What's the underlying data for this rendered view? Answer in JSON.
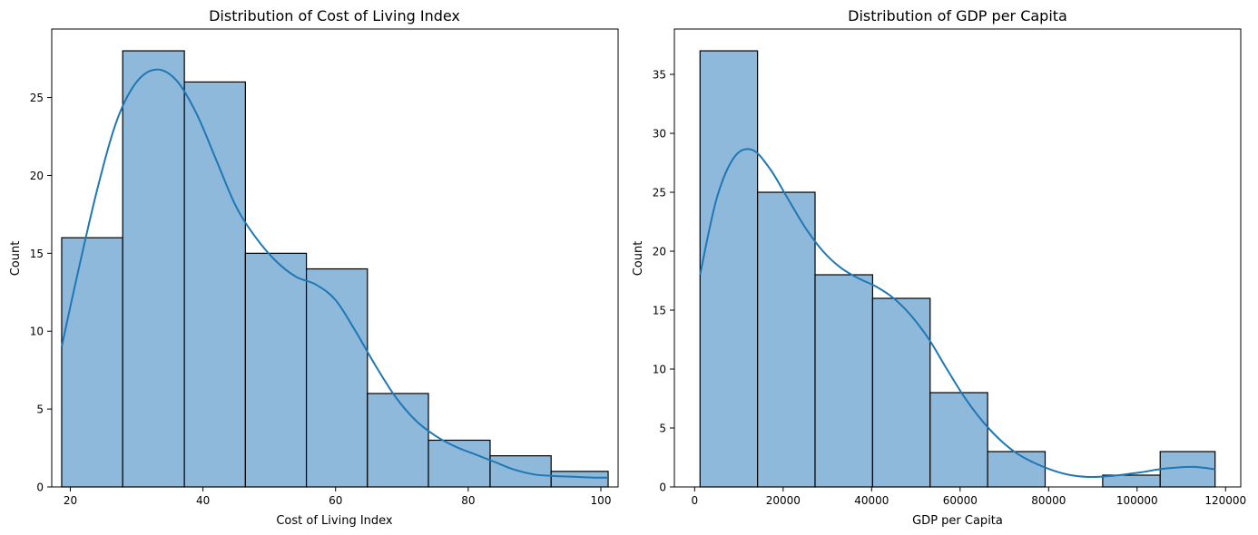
{
  "chart_data": [
    {
      "type": "bar",
      "title": "Distribution of Cost of Living Index",
      "xlabel": "Cost of Living Index",
      "ylabel": "Count",
      "xlim": [
        17.2,
        102.6
      ],
      "ylim": [
        0,
        29.4
      ],
      "xticks": [
        20,
        40,
        60,
        80,
        100
      ],
      "yticks": [
        0,
        5,
        10,
        15,
        20,
        25
      ],
      "bins": [
        {
          "x0": 18.7,
          "x1": 27.9,
          "count": 16
        },
        {
          "x0": 27.9,
          "x1": 37.2,
          "count": 28
        },
        {
          "x0": 37.2,
          "x1": 46.4,
          "count": 26
        },
        {
          "x0": 46.4,
          "x1": 55.6,
          "count": 15
        },
        {
          "x0": 55.6,
          "x1": 64.8,
          "count": 14
        },
        {
          "x0": 64.8,
          "x1": 74.0,
          "count": 6
        },
        {
          "x0": 74.0,
          "x1": 83.3,
          "count": 3
        },
        {
          "x0": 83.3,
          "x1": 92.5,
          "count": 2
        },
        {
          "x0": 92.5,
          "x1": 101.1,
          "count": 1
        }
      ],
      "kde": {
        "x": [
          18.7,
          21,
          24,
          27,
          30,
          33,
          36,
          39,
          42,
          45,
          48,
          51,
          54,
          57,
          60,
          63,
          66,
          69,
          72,
          75,
          78,
          81,
          84,
          87,
          90,
          93,
          96,
          99,
          101.1
        ],
        "y": [
          9.0,
          13.5,
          19.0,
          23.5,
          26.0,
          26.8,
          26.1,
          24.0,
          21.0,
          18.0,
          16.0,
          14.5,
          13.5,
          13.0,
          12.0,
          10.0,
          7.8,
          5.8,
          4.3,
          3.3,
          2.6,
          2.1,
          1.6,
          1.1,
          0.8,
          0.7,
          0.65,
          0.6,
          0.6
        ]
      },
      "bar_color": "#8fb9db",
      "line_color": "#1f77b4"
    },
    {
      "type": "bar",
      "title": "Distribution of GDP per Capita",
      "xlabel": "GDP per Capita",
      "ylabel": "Count",
      "xlim": [
        -4580,
        123430
      ],
      "ylim": [
        0,
        38.85
      ],
      "xticks": [
        0,
        20000,
        40000,
        60000,
        80000,
        100000,
        120000
      ],
      "yticks": [
        0,
        5,
        10,
        15,
        20,
        25,
        30,
        35
      ],
      "bins": [
        {
          "x0": 1220,
          "x1": 14220,
          "count": 37
        },
        {
          "x0": 14220,
          "x1": 27220,
          "count": 25
        },
        {
          "x0": 27220,
          "x1": 40220,
          "count": 18
        },
        {
          "x0": 40220,
          "x1": 53220,
          "count": 16
        },
        {
          "x0": 53220,
          "x1": 66220,
          "count": 8
        },
        {
          "x0": 66220,
          "x1": 79220,
          "count": 3
        },
        {
          "x0": 79220,
          "x1": 92220,
          "count": 0
        },
        {
          "x0": 92220,
          "x1": 105220,
          "count": 1
        },
        {
          "x0": 105220,
          "x1": 117630,
          "count": 3
        }
      ],
      "kde": {
        "x": [
          1220,
          5000,
          9000,
          13000,
          17000,
          21000,
          25000,
          29000,
          33000,
          37000,
          41000,
          45000,
          49000,
          53000,
          57000,
          61000,
          65000,
          69000,
          73000,
          77000,
          81000,
          85000,
          89000,
          93000,
          97000,
          101000,
          105000,
          109000,
          113000,
          117630
        ],
        "y": [
          18.0,
          24.5,
          28.0,
          28.6,
          27.0,
          24.5,
          22.0,
          20.0,
          18.6,
          17.7,
          17.0,
          16.0,
          14.5,
          12.5,
          10.0,
          7.6,
          5.6,
          4.0,
          2.8,
          2.0,
          1.4,
          1.0,
          0.85,
          0.9,
          1.05,
          1.25,
          1.5,
          1.65,
          1.7,
          1.5
        ]
      },
      "bar_color": "#8fb9db",
      "line_color": "#1f77b4"
    }
  ]
}
